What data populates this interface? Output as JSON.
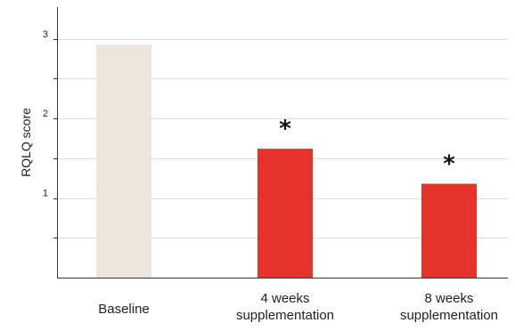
{
  "chart_data": {
    "type": "bar",
    "ylabel": "RQLQ score",
    "ylim": [
      0,
      3.4
    ],
    "yticks": [
      1,
      2,
      3
    ],
    "y_minor_step": 0.5,
    "grid": true,
    "categories": [
      [
        "Baseline"
      ],
      [
        "4 weeks",
        "supplementation"
      ],
      [
        "8 weeks",
        "supplementation"
      ]
    ],
    "values": [
      2.93,
      1.62,
      1.18
    ],
    "bar_colors": [
      "#ece6df",
      "#e5332b",
      "#e5332b"
    ],
    "annotations": [
      "",
      "*",
      "*"
    ],
    "grid_color": "#dddddd",
    "axis_color": "#333333"
  }
}
